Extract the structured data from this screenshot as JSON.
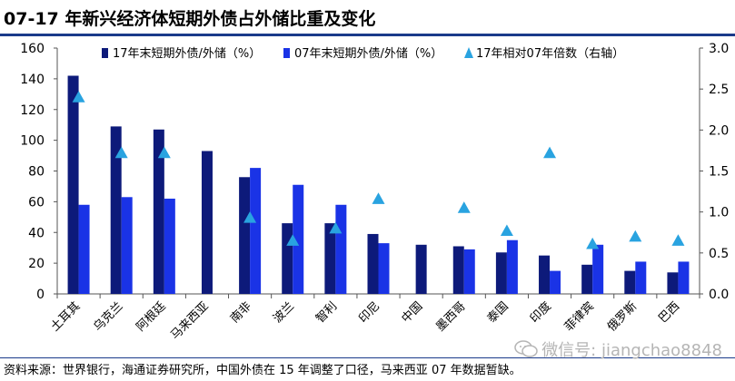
{
  "title": "07-17 年新兴经济体短期外债占外储比重及变化",
  "source_note": "资料来源：世界银行，海通证券研究所，中国外债在 15 年调整了口径，马来西亚 07 年数据暂缺。",
  "watermark": "微信号: jiangchao8848",
  "colors": {
    "series_2017": "#0d1a7a",
    "series_2007": "#1a33e6",
    "series_ratio": "#29a3e0"
  },
  "chart_data": {
    "type": "bar",
    "categories": [
      "土耳其",
      "乌克兰",
      "阿根廷",
      "马来西亚",
      "南非",
      "波兰",
      "智利",
      "印尼",
      "中国",
      "墨西哥",
      "泰国",
      "印度",
      "菲律宾",
      "俄罗斯",
      "巴西"
    ],
    "series": [
      {
        "name": "17年末短期外债/外储（%）",
        "kind": "bar",
        "axis": "left",
        "values": [
          142,
          109,
          107,
          93,
          76,
          46,
          46,
          39,
          32,
          31,
          27,
          25,
          19,
          15,
          14
        ]
      },
      {
        "name": "07年末短期外债/外储（%）",
        "kind": "bar",
        "axis": "left",
        "values": [
          58,
          63,
          62,
          null,
          82,
          71,
          58,
          33,
          null,
          29,
          35,
          15,
          32,
          21,
          21
        ]
      },
      {
        "name": "17年相对07年倍数（右轴）",
        "kind": "marker",
        "axis": "right",
        "values": [
          2.4,
          1.72,
          1.72,
          null,
          0.93,
          0.65,
          0.8,
          1.16,
          null,
          1.05,
          0.77,
          1.72,
          0.61,
          0.7,
          0.65
        ]
      }
    ],
    "y_left": {
      "min": 0,
      "max": 160,
      "ticks": [
        "0",
        "20",
        "40",
        "60",
        "80",
        "100",
        "120",
        "140",
        "160"
      ]
    },
    "y_right": {
      "min": 0,
      "max": 3.0,
      "ticks": [
        "0.0",
        "0.5",
        "1.0",
        "1.5",
        "2.0",
        "2.5",
        "3.0"
      ]
    },
    "legend_position": "top",
    "grid": false
  }
}
